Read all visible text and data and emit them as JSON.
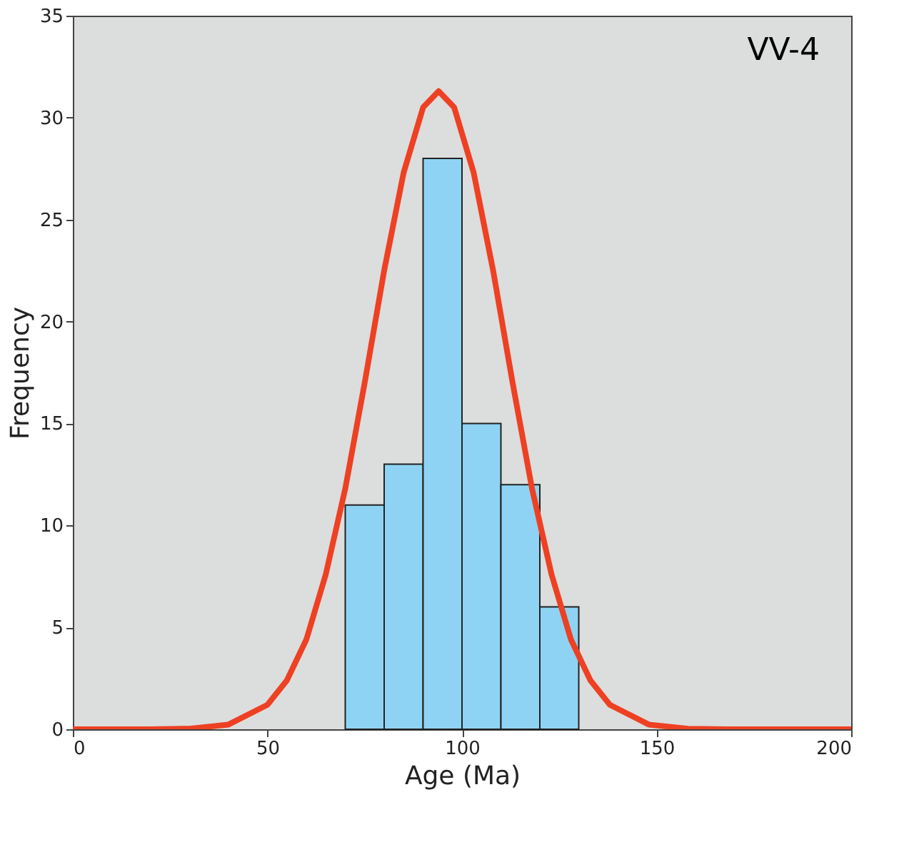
{
  "chart_data": {
    "type": "histogram",
    "xlabel": "Age (Ma)",
    "ylabel": "Frequency",
    "annotations": [
      "VV-4"
    ],
    "bins": [
      70,
      80,
      90,
      100,
      110,
      120,
      130
    ],
    "values": [
      11,
      13,
      28,
      15,
      12,
      6
    ],
    "color": "#8fd3f4",
    "series": [
      {
        "type": "line",
        "color": "#ee4022",
        "x": [
          0,
          20,
          30,
          40,
          50,
          55,
          60,
          65,
          70,
          75,
          80,
          85,
          90,
          94,
          98,
          103,
          108,
          113,
          118,
          123,
          128,
          133,
          138,
          148,
          158,
          168,
          200
        ],
        "values": [
          0,
          0,
          0.03,
          0.23,
          1.2,
          2.4,
          4.4,
          7.6,
          11.8,
          17,
          22.5,
          27.3,
          30.5,
          31.3,
          30.5,
          27.3,
          22.5,
          17,
          11.8,
          7.6,
          4.4,
          2.4,
          1.2,
          0.23,
          0.03,
          0,
          0
        ]
      }
    ],
    "xlim": [
      0,
      200
    ],
    "xticks": [
      0,
      50,
      100,
      150,
      200
    ],
    "ylim": [
      0,
      35
    ],
    "yticks": [
      0,
      5,
      10,
      15,
      20,
      25,
      30,
      35
    ],
    "grid": false
  }
}
